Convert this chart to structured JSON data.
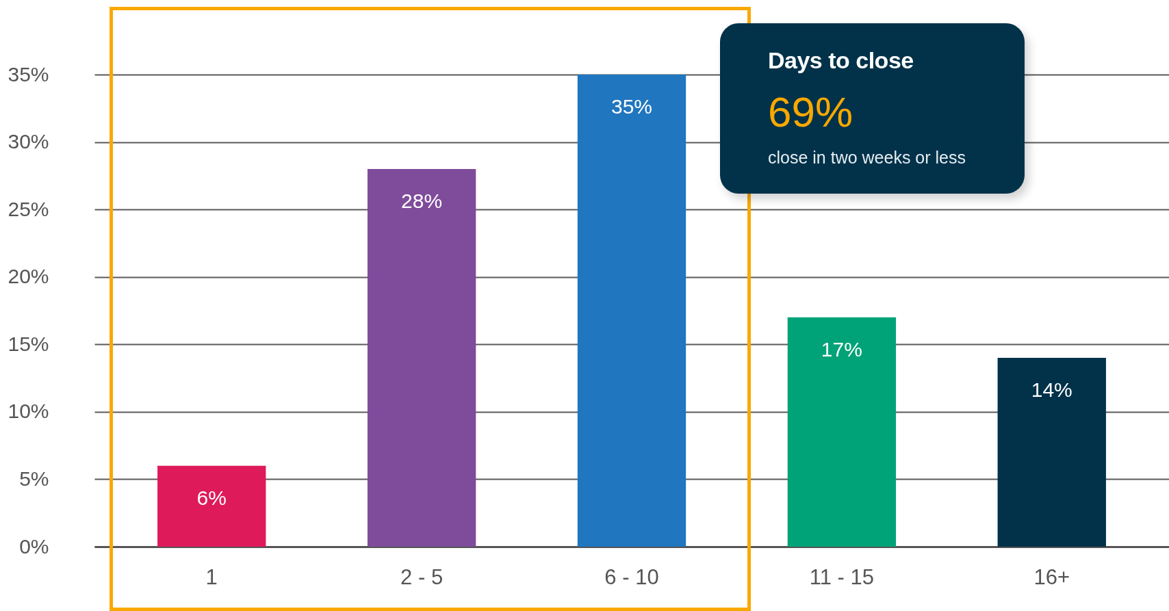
{
  "chart_data": {
    "type": "bar",
    "title": "Days to close",
    "annotations": [
      "69%",
      "close in two weeks or less"
    ],
    "categories": [
      "1",
      "2 - 5",
      "6 - 10",
      "11 - 15",
      "16+"
    ],
    "values": [
      6,
      28,
      35,
      17,
      14
    ],
    "colors": [
      "#de1a5a",
      "#7f4b9b",
      "#2076bf",
      "#00a378",
      "#01324a"
    ],
    "value_labels": [
      "6%",
      "28%",
      "35%",
      "17%",
      "14%"
    ],
    "ylim": [
      0,
      35
    ],
    "yticks": [
      {
        "value": 0,
        "label": "0%"
      },
      {
        "value": 5,
        "label": "5%"
      },
      {
        "value": 10,
        "label": "10%"
      },
      {
        "value": 15,
        "label": "15%"
      },
      {
        "value": 20,
        "label": "20%"
      },
      {
        "value": 25,
        "label": "25%"
      },
      {
        "value": 30,
        "label": "30%"
      },
      {
        "value": 35,
        "label": "35%"
      }
    ],
    "grid": "y"
  }
}
